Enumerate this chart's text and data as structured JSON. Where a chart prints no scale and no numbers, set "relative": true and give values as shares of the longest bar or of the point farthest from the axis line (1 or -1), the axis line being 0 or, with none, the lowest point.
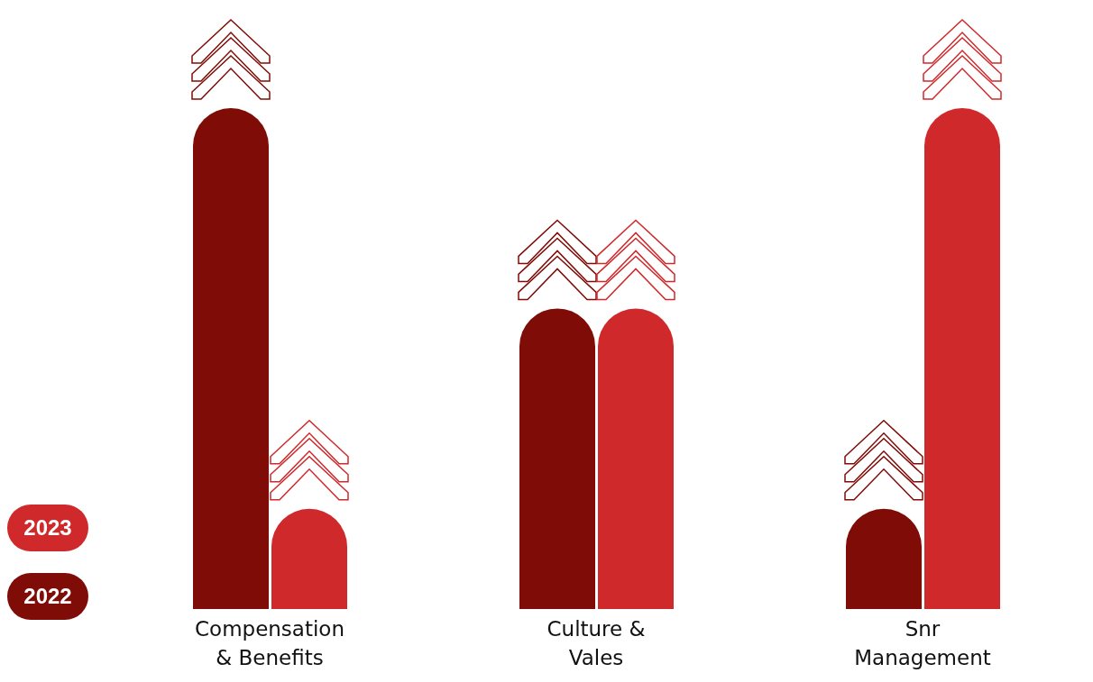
{
  "chart_data": {
    "type": "bar",
    "relative": true,
    "categories": [
      "Compensation & Benefits",
      "Culture & Vales",
      "Snr Management"
    ],
    "series": [
      {
        "name": "2022",
        "color": "#7f0c06",
        "values": [
          1,
          0.6,
          0.2
        ]
      },
      {
        "name": "2023",
        "color": "#d0292b",
        "values": [
          0.2,
          0.6,
          1
        ]
      }
    ],
    "legend": "bottom left",
    "grid": false
  }
}
